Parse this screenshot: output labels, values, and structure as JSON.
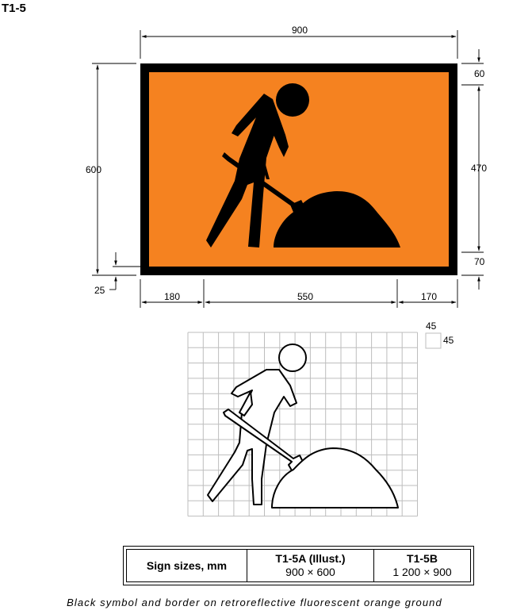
{
  "sign_code": "T1-5",
  "colors": {
    "orange": "#f58220",
    "black": "#000000",
    "grid": "#bdbdbd"
  },
  "dimensions": {
    "overall_width": "900",
    "overall_height": "600",
    "right_top": "60",
    "right_middle": "470",
    "right_bottom": "70",
    "left_bottom": "25",
    "bottom_left": "180",
    "bottom_middle": "550",
    "bottom_right": "170"
  },
  "grid_dimensions": {
    "cell_width": "45",
    "cell_height": "45"
  },
  "sizes_table": {
    "header": "Sign sizes, mm",
    "columns": [
      {
        "name": "T1-5A (Illust.)",
        "size": "900 × 600"
      },
      {
        "name": "T1-5B",
        "size": "1 200 × 900"
      }
    ]
  },
  "caption": "Black symbol and border on retroreflective fluorescent orange ground"
}
